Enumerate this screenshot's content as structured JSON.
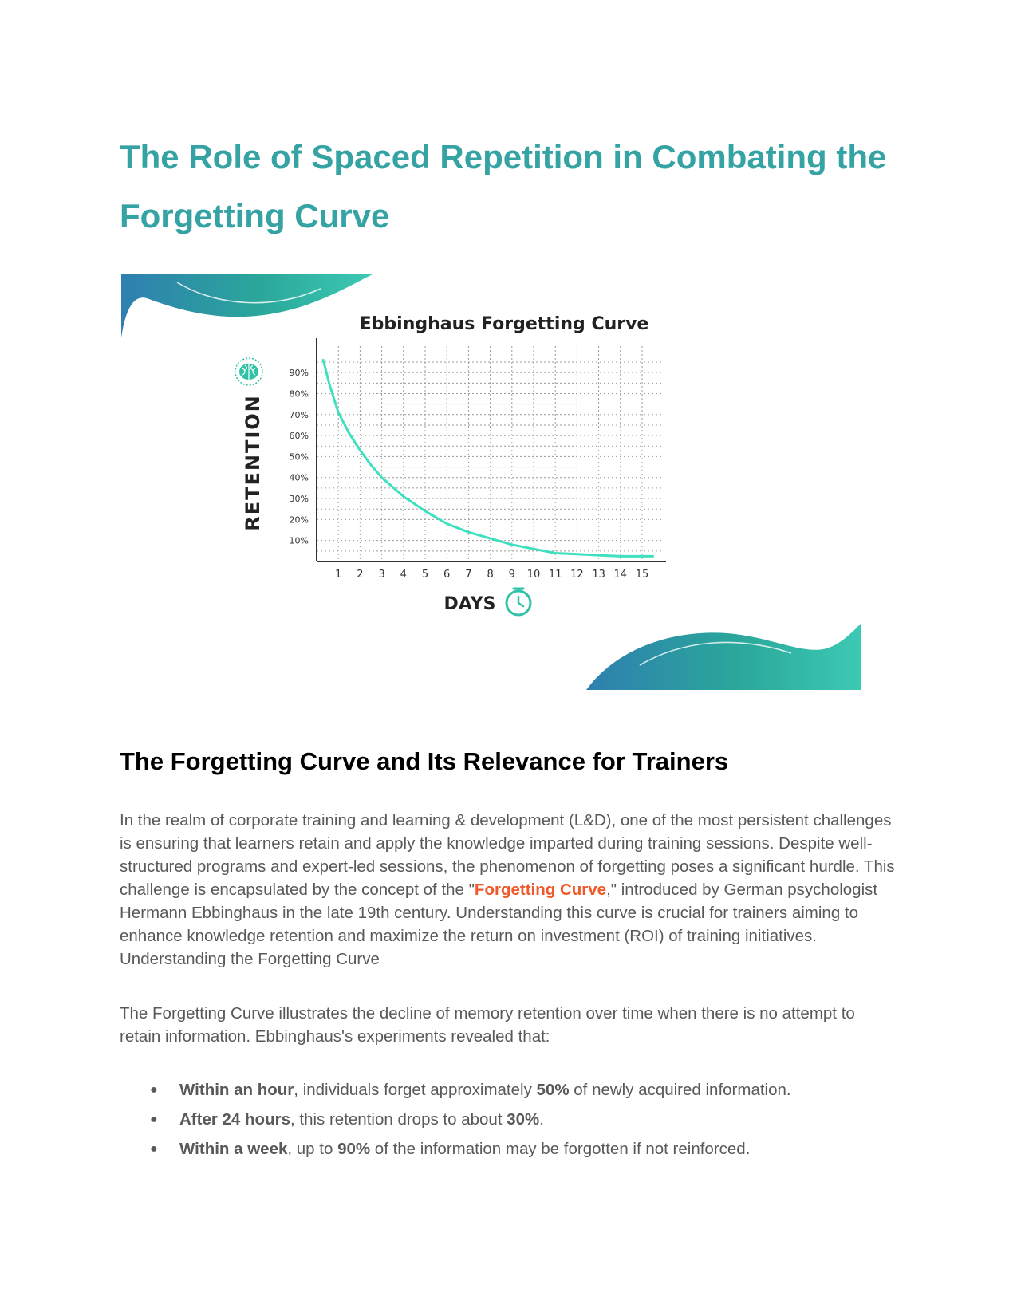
{
  "doc": {
    "title": "The Role of Spaced Repetition in Combating the Forgetting Curve",
    "section_heading": "The Forgetting Curve and Its Relevance for Trainers",
    "paragraph1": {
      "before": "In the realm of corporate training and learning & development (L&D), one of the most persistent challenges is ensuring that learners retain and apply the knowledge imparted during training sessions. Despite well-structured programs and expert-led sessions, the phenomenon of forgetting poses a significant hurdle. This challenge is encapsulated by the concept of the \"",
      "link": "Forgetting Curve",
      "after": ",\" introduced by German psychologist Hermann Ebbinghaus in the late 19th century. Understanding this curve is crucial for trainers aiming to enhance knowledge retention and maximize the return on investment (ROI) of training initiatives. Understanding the Forgetting Curve"
    },
    "paragraph2": "The Forgetting Curve illustrates the decline of memory retention over time when there is no attempt to retain information. Ebbinghaus's experiments revealed that:",
    "bullets": [
      {
        "bold1": "Within an hour",
        "text1": ", individuals forget approximately ",
        "bold2": "50%",
        "text2": " of newly acquired information."
      },
      {
        "bold1": "After 24 hours",
        "text1": ", this retention drops to about ",
        "bold2": "30%",
        "text2": "."
      },
      {
        "bold1": "Within a week",
        "text1": ", up to ",
        "bold2": "90%",
        "text2": " of the information may be forgotten if not reinforced."
      }
    ],
    "bullet_glyph": "●"
  },
  "chart_data": {
    "type": "line",
    "title": "Ebbinghaus Forgetting Curve",
    "xlabel": "DAYS",
    "ylabel": "RETENTION",
    "x_ticks": [
      "1",
      "2",
      "3",
      "4",
      "5",
      "6",
      "7",
      "8",
      "9",
      "10",
      "11",
      "12",
      "13",
      "14",
      "15"
    ],
    "y_ticks": [
      "10%",
      "20%",
      "30%",
      "40%",
      "50%",
      "60%",
      "70%",
      "80%",
      "90%"
    ],
    "xlim": [
      0,
      15.6
    ],
    "ylim": [
      0,
      100
    ],
    "grid": true,
    "series": [
      {
        "x": [
          0.3,
          0.6,
          1,
          1.5,
          2,
          2.5,
          3,
          4,
          5,
          6,
          7,
          8,
          9,
          10,
          11,
          12,
          13,
          14,
          15,
          15.5
        ],
        "values": [
          96,
          84,
          71,
          61,
          53,
          46,
          40,
          31,
          24,
          18,
          14,
          11,
          8,
          6,
          4,
          3.5,
          3,
          2.5,
          2.5,
          2.5
        ]
      }
    ],
    "line_color": "#3ee0bf",
    "icons": [
      "brain-icon",
      "clock-icon"
    ]
  }
}
